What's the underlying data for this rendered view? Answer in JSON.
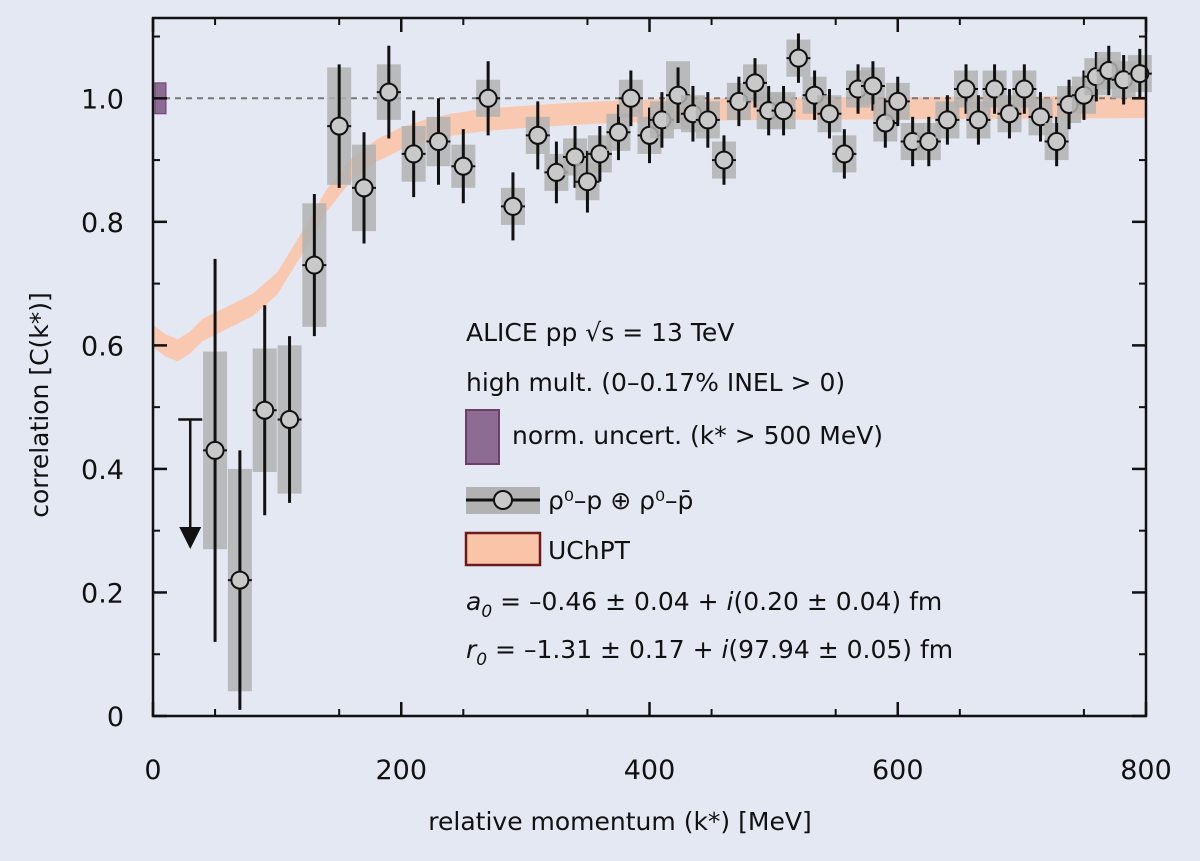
{
  "chart_data": {
    "type": "scatter",
    "xlabel": "relative momentum (k*) [MeV]",
    "ylabel": "correlation [C(k*)]",
    "xlim": [
      0,
      800
    ],
    "ylim": [
      0,
      1.13
    ],
    "x_ticks": [
      0,
      200,
      400,
      600,
      800
    ],
    "x_tick_labels": [
      "0",
      "200",
      "400",
      "600",
      "800"
    ],
    "y_ticks": [
      0,
      0.2,
      0.4,
      0.6,
      0.8,
      1.0
    ],
    "y_tick_labels": [
      "0",
      "0.2",
      "0.4",
      "0.6",
      "0.8",
      "1.0"
    ],
    "reference_line": 1.0,
    "grid": false,
    "legend": {
      "position": "center-right",
      "text_lines": [
        "ALICE pp √s = 13 TeV",
        "high mult. (0–0.17% INEL > 0)"
      ],
      "norm_label": "norm. uncert. (k* > 500 MeV)",
      "data_label": "ρ⁰–p ⊕ ρ⁰–p̄",
      "model_label": "UChPT",
      "a0_symbol": "a",
      "a0_sub": "0",
      "a0_text": " = –0.46 ± 0.04 + ",
      "a0_i": "i",
      "a0_tail": "(0.20 ± 0.04) fm",
      "r0_symbol": "r",
      "r0_sub": "0",
      "r0_text": " = –1.31 ± 0.17 + ",
      "r0_i": "i",
      "r0_tail": "(97.94 ± 0.05) fm"
    },
    "colors": {
      "background": "#e4e8f3",
      "marker_fill": "#c9c9c9",
      "syst_box": "#b2b2b2",
      "model_band": "#f9c4a8",
      "norm_box": "#8d6c93",
      "norm_box_edge": "#6b3f6a",
      "model_legend_edge": "#6e1a1a",
      "ref_line": "#777777"
    },
    "norm_uncertainty": {
      "x": 4,
      "y_low": 0.975,
      "y_high": 1.025
    },
    "upper_limit": {
      "x": 30,
      "y_from": 0.48,
      "y_to": 0.28
    },
    "series": [
      {
        "name": "ρ⁰–p ⊕ ρ⁰–p̄",
        "x": [
          50,
          70,
          90,
          110,
          130,
          150,
          170,
          190,
          210,
          230,
          250,
          270,
          290,
          310,
          325,
          340,
          350,
          360,
          375,
          385,
          400,
          410,
          423,
          435,
          447,
          460,
          472,
          485,
          496,
          508,
          520,
          533,
          545,
          557,
          568,
          580,
          590,
          600,
          612,
          625,
          640,
          655,
          665,
          678,
          690,
          702,
          715,
          728,
          738,
          750,
          760,
          770,
          782,
          795
        ],
        "y": [
          0.43,
          0.22,
          0.495,
          0.48,
          0.73,
          0.955,
          0.855,
          1.01,
          0.91,
          0.93,
          0.89,
          1.0,
          0.825,
          0.94,
          0.88,
          0.905,
          0.865,
          0.91,
          0.945,
          1.0,
          0.94,
          0.965,
          1.005,
          0.975,
          0.965,
          0.9,
          0.995,
          1.025,
          0.98,
          0.98,
          1.065,
          1.005,
          0.975,
          0.91,
          1.015,
          1.02,
          0.96,
          0.995,
          0.93,
          0.93,
          0.965,
          1.015,
          0.965,
          1.015,
          0.975,
          1.015,
          0.97,
          0.93,
          0.99,
          1.005,
          1.035,
          1.045,
          1.03,
          1.04
        ],
        "stat_err": [
          0.31,
          0.21,
          0.17,
          0.135,
          0.115,
          0.1,
          0.09,
          0.075,
          0.07,
          0.07,
          0.06,
          0.06,
          0.055,
          0.055,
          0.05,
          0.05,
          0.05,
          0.045,
          0.045,
          0.045,
          0.045,
          0.045,
          0.045,
          0.045,
          0.045,
          0.04,
          0.04,
          0.04,
          0.04,
          0.04,
          0.04,
          0.04,
          0.04,
          0.04,
          0.04,
          0.04,
          0.04,
          0.04,
          0.04,
          0.04,
          0.04,
          0.04,
          0.04,
          0.04,
          0.04,
          0.04,
          0.04,
          0.04,
          0.04,
          0.04,
          0.04,
          0.04,
          0.04,
          0.04
        ],
        "syst_err": [
          0.16,
          0.18,
          0.1,
          0.12,
          0.1,
          0.095,
          0.07,
          0.045,
          0.045,
          0.04,
          0.035,
          0.03,
          0.03,
          0.03,
          0.03,
          0.03,
          0.03,
          0.03,
          0.03,
          0.03,
          0.03,
          0.03,
          0.055,
          0.03,
          0.03,
          0.03,
          0.03,
          0.03,
          0.03,
          0.03,
          0.03,
          0.03,
          0.03,
          0.03,
          0.03,
          0.03,
          0.03,
          0.03,
          0.03,
          0.03,
          0.03,
          0.03,
          0.03,
          0.03,
          0.03,
          0.03,
          0.03,
          0.03,
          0.03,
          0.03,
          0.03,
          0.03,
          0.03,
          0.03
        ]
      },
      {
        "name": "UChPT",
        "x": [
          0,
          10,
          20,
          30,
          40,
          60,
          80,
          100,
          120,
          140,
          160,
          180,
          200,
          220,
          240,
          260,
          280,
          300,
          330,
          360,
          400,
          450,
          500,
          600,
          700,
          800
        ],
        "y": [
          0.615,
          0.6,
          0.592,
          0.605,
          0.625,
          0.645,
          0.665,
          0.7,
          0.765,
          0.835,
          0.885,
          0.915,
          0.935,
          0.948,
          0.957,
          0.963,
          0.967,
          0.97,
          0.974,
          0.977,
          0.98,
          0.982,
          0.983,
          0.984,
          0.985,
          0.986
        ],
        "band": 0.018
      }
    ]
  }
}
